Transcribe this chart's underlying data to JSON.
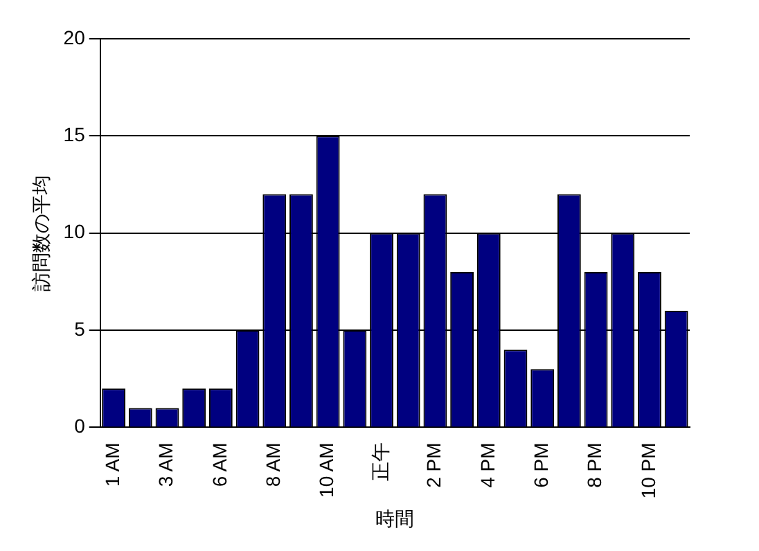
{
  "chart_data": {
    "type": "bar",
    "xlabel": "時間",
    "ylabel": "訪問数の平均",
    "categories": [
      "1 AM",
      null,
      "3 AM",
      null,
      "6 AM",
      null,
      "8 AM",
      null,
      "10 AM",
      null,
      "正午",
      null,
      "2 PM",
      null,
      "4 PM",
      null,
      "6 PM",
      null,
      "8 PM",
      null,
      "10 PM",
      null
    ],
    "values": [
      2,
      1,
      1,
      2,
      2,
      5,
      12,
      12,
      15,
      5,
      10,
      10,
      12,
      8,
      10,
      4,
      3,
      12,
      8,
      10,
      8,
      6
    ],
    "color": "#000080",
    "ylim": [
      0,
      20
    ],
    "yticks": [
      0,
      5,
      10,
      15,
      20
    ],
    "grid": "y",
    "legend": false
  }
}
